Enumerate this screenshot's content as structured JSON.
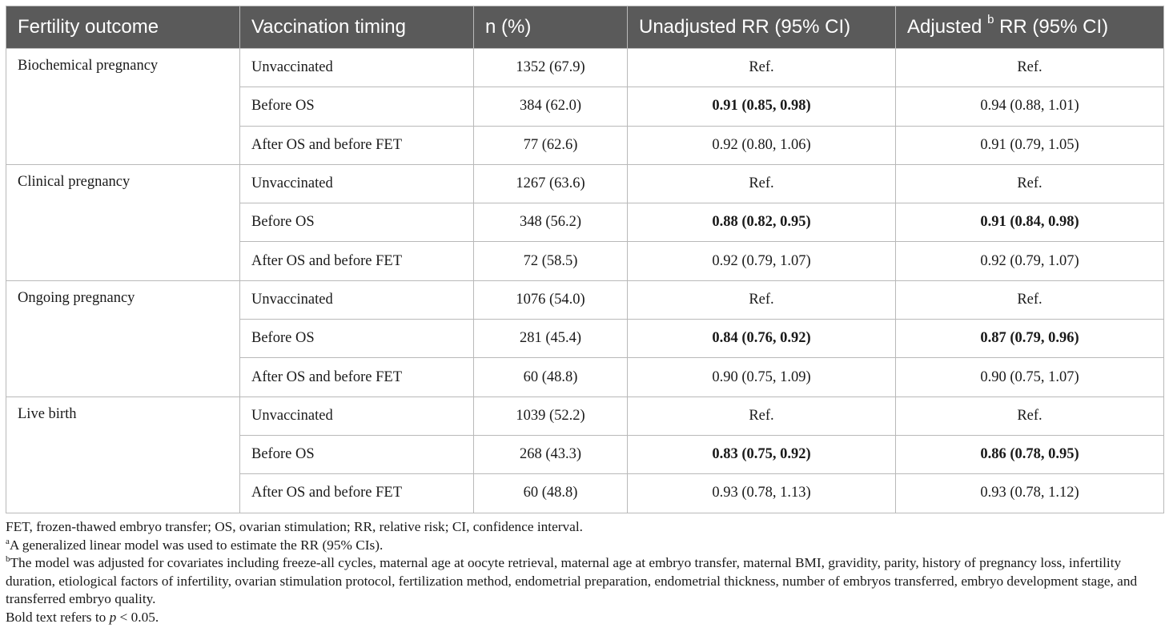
{
  "table": {
    "headers": {
      "outcome": "Fertility outcome",
      "timing": "Vaccination timing",
      "n": "n (%)",
      "unadjusted": "Unadjusted RR (95% CI)",
      "adjusted_pre": "Adjusted",
      "adjusted_sup": "b",
      "adjusted_post": " RR (95% CI)"
    },
    "groups": [
      {
        "outcome": "Biochemical pregnancy",
        "rows": [
          {
            "timing": "Unvaccinated",
            "n": "1352 (67.9)",
            "unadjusted": "Ref.",
            "adjusted": "Ref.",
            "unadj_bold": false,
            "adj_bold": false
          },
          {
            "timing": "Before OS",
            "n": "384 (62.0)",
            "unadjusted": "0.91 (0.85, 0.98)",
            "adjusted": "0.94 (0.88, 1.01)",
            "unadj_bold": true,
            "adj_bold": false
          },
          {
            "timing": "After OS and before FET",
            "n": "77 (62.6)",
            "unadjusted": "0.92 (0.80, 1.06)",
            "adjusted": "0.91 (0.79, 1.05)",
            "unadj_bold": false,
            "adj_bold": false
          }
        ]
      },
      {
        "outcome": "Clinical pregnancy",
        "rows": [
          {
            "timing": "Unvaccinated",
            "n": "1267 (63.6)",
            "unadjusted": "Ref.",
            "adjusted": "Ref.",
            "unadj_bold": false,
            "adj_bold": false
          },
          {
            "timing": "Before OS",
            "n": "348 (56.2)",
            "unadjusted": "0.88 (0.82, 0.95)",
            "adjusted": "0.91 (0.84, 0.98)",
            "unadj_bold": true,
            "adj_bold": true
          },
          {
            "timing": "After OS and before FET",
            "n": "72 (58.5)",
            "unadjusted": "0.92 (0.79, 1.07)",
            "adjusted": "0.92 (0.79, 1.07)",
            "unadj_bold": false,
            "adj_bold": false
          }
        ]
      },
      {
        "outcome": "Ongoing pregnancy",
        "rows": [
          {
            "timing": "Unvaccinated",
            "n": "1076 (54.0)",
            "unadjusted": "Ref.",
            "adjusted": "Ref.",
            "unadj_bold": false,
            "adj_bold": false
          },
          {
            "timing": "Before OS",
            "n": "281 (45.4)",
            "unadjusted": "0.84 (0.76, 0.92)",
            "adjusted": "0.87 (0.79, 0.96)",
            "unadj_bold": true,
            "adj_bold": true
          },
          {
            "timing": "After OS and before FET",
            "n": "60 (48.8)",
            "unadjusted": "0.90 (0.75, 1.09)",
            "adjusted": "0.90 (0.75, 1.07)",
            "unadj_bold": false,
            "adj_bold": false
          }
        ]
      },
      {
        "outcome": "Live birth",
        "rows": [
          {
            "timing": "Unvaccinated",
            "n": "1039 (52.2)",
            "unadjusted": "Ref.",
            "adjusted": "Ref.",
            "unadj_bold": false,
            "adj_bold": false
          },
          {
            "timing": "Before OS",
            "n": "268 (43.3)",
            "unadjusted": "0.83 (0.75, 0.92)",
            "adjusted": "0.86 (0.78, 0.95)",
            "unadj_bold": true,
            "adj_bold": true
          },
          {
            "timing": "After OS and before FET",
            "n": "60 (48.8)",
            "unadjusted": "0.93 (0.78, 1.13)",
            "adjusted": "0.93 (0.78, 1.12)",
            "unadj_bold": false,
            "adj_bold": false
          }
        ]
      }
    ]
  },
  "footnotes": {
    "abbreviations": "FET, frozen-thawed embryo transfer; OS, ovarian stimulation; RR, relative risk; CI, confidence interval.",
    "note_a_marker": "a",
    "note_a": "A generalized linear model was used to estimate the RR (95% CIs).",
    "note_b_marker": "b",
    "note_b": "The model was adjusted for covariates including freeze-all cycles, maternal age at oocyte retrieval, maternal age at embryo transfer, maternal BMI, gravidity, parity, history of pregnancy loss, infertility duration, etiological factors of infertility, ovarian stimulation protocol, fertilization method, endometrial preparation, endometrial thickness, number of embryos transferred, embryo development stage, and transferred embryo quality.",
    "bold_pre": "Bold text refers to ",
    "bold_p": "p",
    "bold_post": " < 0.05."
  },
  "colors": {
    "header_bg": "#5a5a5a",
    "header_text": "#ffffff",
    "border": "#b9b9b9"
  }
}
